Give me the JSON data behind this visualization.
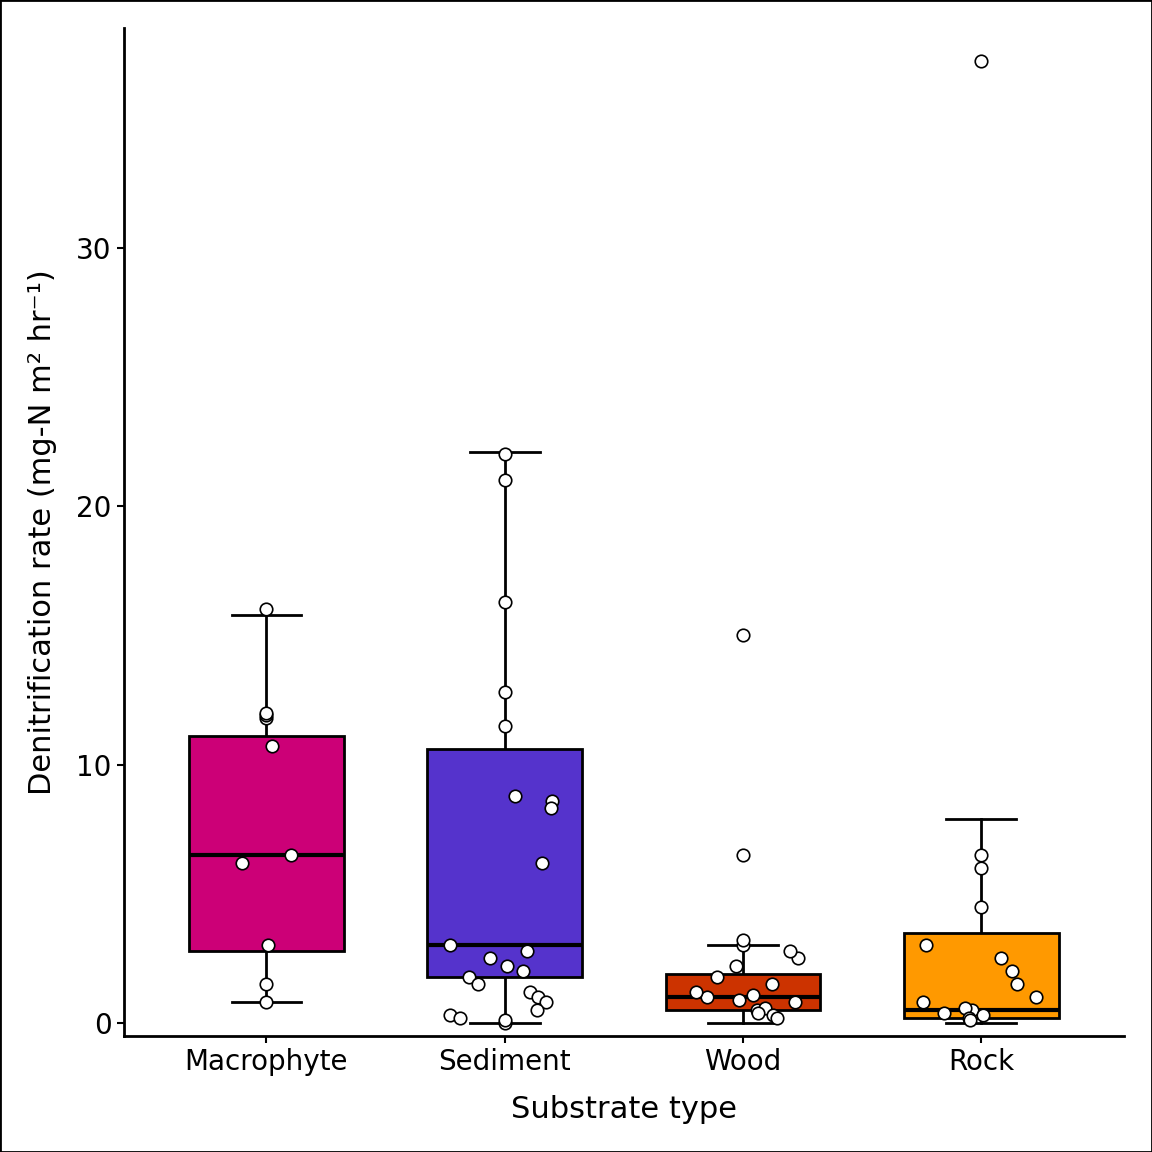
{
  "categories": [
    "Macrophyte",
    "Sediment",
    "Wood",
    "Rock"
  ],
  "colors": [
    "#CC0077",
    "#5533CC",
    "#CC3300",
    "#FF9900"
  ],
  "ylabel": "Denitrification rate (mg-N m² hr⁻¹)",
  "xlabel": "Substrate type",
  "ylim": [
    -0.5,
    38.5
  ],
  "yticks": [
    0,
    10,
    20,
    30
  ],
  "box_data": {
    "Macrophyte": {
      "q1": 2.8,
      "median": 6.5,
      "q3": 11.1,
      "whisker_low": 0.8,
      "whisker_high": 15.8,
      "outliers_above": [],
      "outliers_below": [
        1.5,
        0.8
      ],
      "extra_outliers": [
        11.8,
        16.0,
        11.9,
        12.0
      ]
    },
    "Sediment": {
      "q1": 1.8,
      "median": 3.0,
      "q3": 10.6,
      "whisker_low": 0.0,
      "whisker_high": 22.1,
      "outliers_above": [
        21.0,
        22.0
      ],
      "outliers_below": [
        0.0,
        0.1
      ],
      "extra_outliers": [
        16.3,
        12.8,
        11.5
      ]
    },
    "Wood": {
      "q1": 0.5,
      "median": 1.0,
      "q3": 1.9,
      "whisker_low": 0.0,
      "whisker_high": 3.0,
      "outliers_above": [
        6.5,
        15.0
      ],
      "outliers_below": [],
      "extra_outliers": [
        3.0,
        3.2
      ]
    },
    "Rock": {
      "q1": 0.2,
      "median": 0.5,
      "q3": 3.5,
      "whisker_low": 0.0,
      "whisker_high": 7.9,
      "outliers_above": [
        37.2
      ],
      "outliers_below": [],
      "extra_outliers": [
        6.5,
        6.0,
        4.5
      ]
    }
  },
  "jitter_data": {
    "Macrophyte": [
      10.7,
      6.5,
      6.2,
      3.0,
      1.5,
      11.8,
      11.9,
      16.0,
      12.0
    ],
    "Sediment": [
      8.8,
      8.6,
      8.3,
      6.2,
      3.0,
      2.8,
      2.5,
      2.2,
      2.0,
      1.8,
      1.5,
      1.2,
      1.0,
      0.8,
      0.5,
      0.3,
      0.2,
      0.1,
      11.5,
      12.8,
      16.3,
      21.0,
      22.0
    ],
    "Wood": [
      0.8,
      0.9,
      1.0,
      1.1,
      0.5,
      0.6,
      1.2,
      1.5,
      1.8,
      0.3,
      0.2,
      0.4,
      2.2,
      2.5,
      2.8,
      3.0,
      3.2,
      6.5,
      15.0
    ],
    "Rock": [
      0.5,
      0.6,
      0.4,
      0.3,
      0.8,
      1.0,
      1.5,
      2.0,
      2.5,
      3.0,
      0.2,
      0.1,
      6.5,
      6.0,
      4.5,
      37.2
    ]
  },
  "box_width": 0.65,
  "linewidth": 2.0,
  "median_linewidth": 3.0,
  "figsize": [
    11.52,
    11.52
  ],
  "dpi": 100,
  "background_color": "#FFFFFF",
  "label_fontsize": 22,
  "tick_fontsize": 20,
  "frame_linewidth": 2.0
}
